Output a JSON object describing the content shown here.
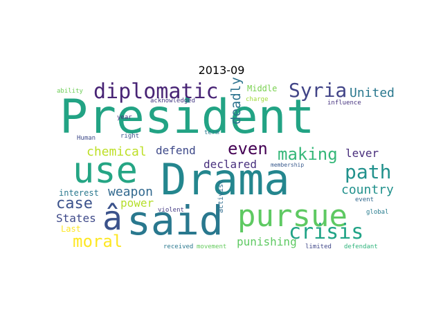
{
  "title": "2013-09",
  "words": [
    {
      "text": "President",
      "color": "#22a384",
      "vertical": false
    },
    {
      "text": "Drama",
      "color": "#24868e",
      "vertical": false
    },
    {
      "text": "use",
      "color": "#25a584",
      "vertical": false
    },
    {
      "text": "said",
      "color": "#29788e",
      "vertical": false
    },
    {
      "text": "pursue",
      "color": "#5ec962",
      "vertical": false
    },
    {
      "text": "â",
      "color": "#3b528b",
      "vertical": false
    },
    {
      "text": "diplomatic",
      "color": "#482475",
      "vertical": false
    },
    {
      "text": "Syria",
      "color": "#414487",
      "vertical": false
    },
    {
      "text": "United",
      "color": "#2a788e",
      "vertical": false
    },
    {
      "text": "path",
      "color": "#21918c",
      "vertical": false
    },
    {
      "text": "crisis",
      "color": "#20a386",
      "vertical": false
    },
    {
      "text": "moral",
      "color": "#fde725",
      "vertical": false
    },
    {
      "text": "making",
      "color": "#35b779",
      "vertical": false
    },
    {
      "text": "even",
      "color": "#440154",
      "vertical": false
    },
    {
      "text": "case",
      "color": "#3b528b",
      "vertical": false
    },
    {
      "text": "deadly",
      "color": "#2c728e",
      "vertical": true
    },
    {
      "text": "declared",
      "color": "#472f7d",
      "vertical": false
    },
    {
      "text": "defend",
      "color": "#3e4989",
      "vertical": false
    },
    {
      "text": "chemical",
      "color": "#bddf26",
      "vertical": false
    },
    {
      "text": "lever",
      "color": "#472d7b",
      "vertical": false
    },
    {
      "text": "country",
      "color": "#21918c",
      "vertical": false
    },
    {
      "text": "weapon",
      "color": "#31688e",
      "vertical": false
    },
    {
      "text": "States",
      "color": "#3e4989",
      "vertical": false
    },
    {
      "text": "power",
      "color": "#b5de2b",
      "vertical": false
    },
    {
      "text": "punishing",
      "color": "#5ec962",
      "vertical": false
    },
    {
      "text": "interest",
      "color": "#2a788e",
      "vertical": false
    },
    {
      "text": "Middle",
      "color": "#7ad151",
      "vertical": false
    },
    {
      "text": "acknowledged",
      "color": "#443983",
      "vertical": false
    },
    {
      "text": "charge",
      "color": "#a0da39",
      "vertical": false
    },
    {
      "text": "influence",
      "color": "#46337f",
      "vertical": false
    },
    {
      "text": "ability",
      "color": "#6ece58",
      "vertical": false
    },
    {
      "text": "year",
      "color": "#46307e",
      "vertical": false
    },
    {
      "text": "right",
      "color": "#3b528b",
      "vertical": false
    },
    {
      "text": "term",
      "color": "#2a788e",
      "vertical": false
    },
    {
      "text": "Human",
      "color": "#3e4a89",
      "vertical": false
    },
    {
      "text": "membership",
      "color": "#38598c",
      "vertical": false
    },
    {
      "text": "Last",
      "color": "#fde725",
      "vertical": false
    },
    {
      "text": "violent",
      "color": "#443a83",
      "vertical": false
    },
    {
      "text": "activist",
      "color": "#2f6c8e",
      "vertical": true
    },
    {
      "text": "event",
      "color": "#31688e",
      "vertical": false
    },
    {
      "text": "global",
      "color": "#287c8e",
      "vertical": false
    },
    {
      "text": "received",
      "color": "#2a788e",
      "vertical": false
    },
    {
      "text": "movement",
      "color": "#65cb5e",
      "vertical": false
    },
    {
      "text": "limited",
      "color": "#3f4788",
      "vertical": false
    },
    {
      "text": "defendant",
      "color": "#2fb47c",
      "vertical": false
    }
  ]
}
